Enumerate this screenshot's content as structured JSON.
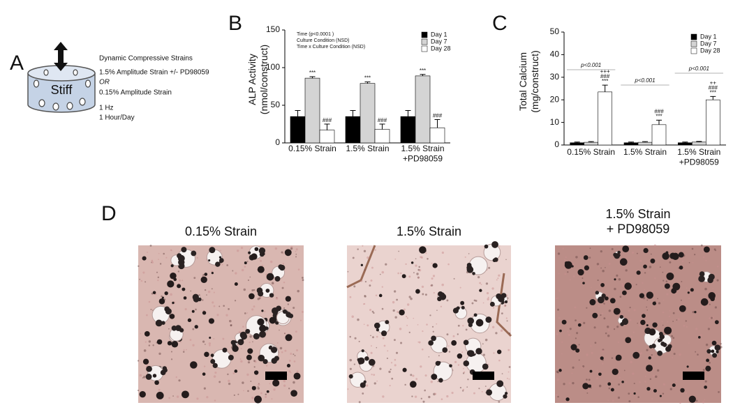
{
  "panel_a": {
    "label": "A",
    "sample": "Stiff",
    "lines": [
      "Dynamic Compressive Strains",
      "1.5% Amplitude Strain +/- PD98059",
      "OR",
      "0.15% Amplitude Strain",
      "1 Hz",
      "1 Hour/Day"
    ]
  },
  "chart_data": [
    {
      "type": "bar",
      "panel_label": "B",
      "y_label": "ALP Activity\n(nmol/construct)",
      "categories": [
        "0.15% Strain",
        "1.5% Strain",
        "1.5% Strain\n+PD98059"
      ],
      "notes": [
        "Time   (p<0.0001 )",
        "Culture Condition (NSD)",
        "Time x Culture Condition (NSD)"
      ],
      "series": [
        {
          "name": "Day 1",
          "color": "#000000",
          "values": [
            35,
            35,
            35
          ],
          "errors": [
            8,
            8,
            8
          ]
        },
        {
          "name": "Day 7",
          "color": "#d4d4d4",
          "values": [
            86,
            79,
            89
          ],
          "errors": [
            2,
            2,
            2
          ],
          "annotations": [
            [
              "***"
            ],
            [
              "***"
            ],
            [
              "***"
            ]
          ]
        },
        {
          "name": "Day 28",
          "color": "#ffffff",
          "values": [
            17,
            18,
            20
          ],
          "errors": [
            8,
            7,
            11
          ],
          "annotations": [
            [
              "###"
            ],
            [
              "###"
            ],
            [
              "###"
            ]
          ]
        }
      ],
      "ylim": [
        0,
        150
      ],
      "yticks": [
        0,
        50,
        100,
        150
      ],
      "legend": "top-right"
    },
    {
      "type": "bar",
      "panel_label": "C",
      "y_label": "Total Calcium\n(mg/construct)",
      "categories": [
        "0.15% Strain",
        "1.5% Strain",
        "1.5% Strain\n+PD98059"
      ],
      "brackets": [
        "p<0.001",
        "p<0.001",
        "p<0.001"
      ],
      "series": [
        {
          "name": "Day 1",
          "color": "#000000",
          "values": [
            1,
            1,
            1
          ],
          "errors": [
            0.3,
            0.3,
            0.3
          ]
        },
        {
          "name": "Day 7",
          "color": "#d4d4d4",
          "values": [
            1.2,
            1.2,
            1.3
          ],
          "errors": [
            0.3,
            0.3,
            0.3
          ]
        },
        {
          "name": "Day 28",
          "color": "#ffffff",
          "values": [
            23.5,
            9,
            20
          ],
          "errors": [
            3,
            2,
            1.5
          ],
          "annotations": [
            [
              "***",
              "###",
              "+++"
            ],
            [
              "***",
              "###"
            ],
            [
              "***",
              "###",
              "++"
            ]
          ]
        }
      ],
      "ylim": [
        0,
        50
      ],
      "yticks": [
        0,
        10,
        20,
        30,
        40,
        50
      ],
      "legend": "top-right"
    }
  ],
  "panel_d": {
    "label": "D",
    "titles": [
      "0.15% Strain",
      "1.5% Strain",
      "1.5% Strain\n+ PD98059"
    ]
  }
}
